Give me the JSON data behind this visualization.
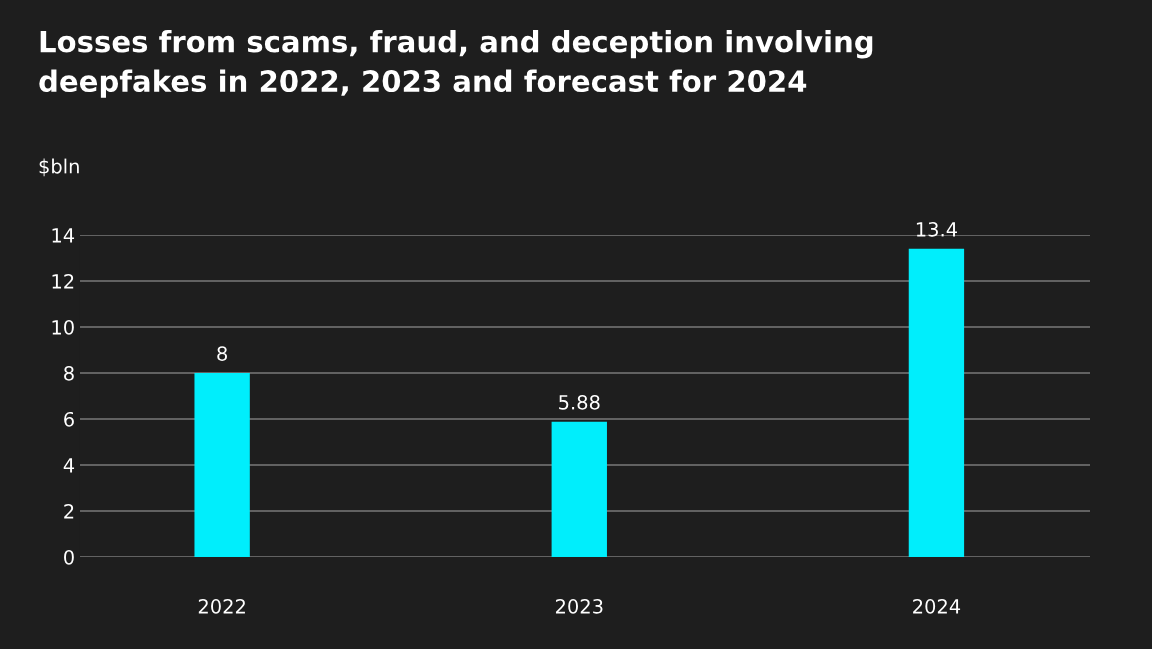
{
  "chart_data": {
    "type": "bar",
    "title": "Losses from scams, fraud, and deception involving\ndeepfakes in 2022, 2023 and forecast for 2024",
    "ylabel": "$bln",
    "categories": [
      "2022",
      "2023",
      "2024"
    ],
    "values": [
      8,
      5.88,
      13.4
    ],
    "color": "#00eefc",
    "ylim": [
      0,
      14
    ],
    "yticks": [
      0,
      2,
      4,
      6,
      8,
      10,
      12,
      14
    ],
    "grid": "y",
    "data_labels": true,
    "legend": false
  }
}
